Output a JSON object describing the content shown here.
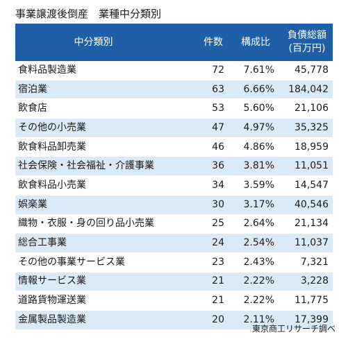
{
  "title": "事業譲渡後倒産　業種中分類別",
  "source": "東京商工リサーチ調べ",
  "colors": {
    "header_bg": "#1e5fa8",
    "stripe": "#dbeaf6"
  },
  "chart_data": {
    "type": "table",
    "headers": {
      "category": "中分類別",
      "count": "件数",
      "ratio": "構成比",
      "debt_line1": "負債総額",
      "debt_line2": "(百万円)"
    },
    "rows": [
      {
        "category": "食料品製造業",
        "count": "72",
        "ratio": "7.61%",
        "debt": "45,778"
      },
      {
        "category": "宿泊業",
        "count": "63",
        "ratio": "6.66%",
        "debt": "184,042"
      },
      {
        "category": "飲食店",
        "count": "53",
        "ratio": "5.60%",
        "debt": "21,106"
      },
      {
        "category": "その他の小売業",
        "count": "47",
        "ratio": "4.97%",
        "debt": "35,325"
      },
      {
        "category": "飲食料品卸売業",
        "count": "46",
        "ratio": "4.86%",
        "debt": "18,959"
      },
      {
        "category": "社会保険・社会福祉・介護事業",
        "count": "36",
        "ratio": "3.81%",
        "debt": "11,051"
      },
      {
        "category": "飲食料品小売業",
        "count": "34",
        "ratio": "3.59%",
        "debt": "14,547"
      },
      {
        "category": "娯楽業",
        "count": "30",
        "ratio": "3.17%",
        "debt": "40,546"
      },
      {
        "category": "織物・衣服・身の回り品小売業",
        "count": "25",
        "ratio": "2.64%",
        "debt": "21,134"
      },
      {
        "category": "総合工事業",
        "count": "24",
        "ratio": "2.54%",
        "debt": "11,037"
      },
      {
        "category": "その他の事業サービス業",
        "count": "23",
        "ratio": "2.43%",
        "debt": "7,321"
      },
      {
        "category": "情報サービス業",
        "count": "21",
        "ratio": "2.22%",
        "debt": "3,228"
      },
      {
        "category": "道路貨物運送業",
        "count": "21",
        "ratio": "2.22%",
        "debt": "11,775"
      },
      {
        "category": "金属製品製造業",
        "count": "20",
        "ratio": "2.11%",
        "debt": "17,399"
      }
    ]
  }
}
